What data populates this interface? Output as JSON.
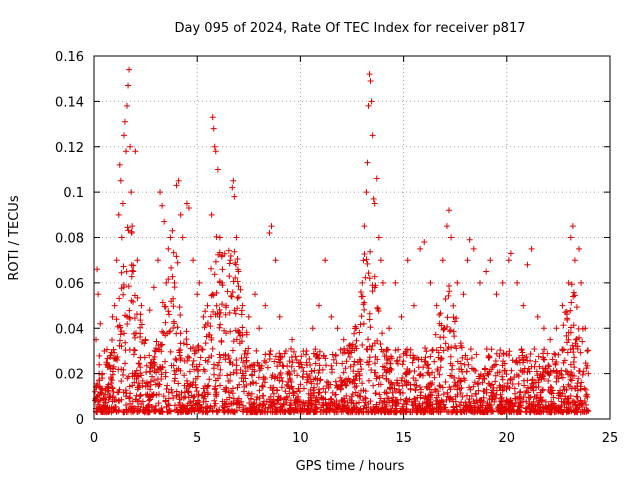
{
  "chart_data": {
    "type": "scatter",
    "title": "Day 095 of 2024, Rate Of TEC Index for receiver p817",
    "xlabel": "GPS time / hours",
    "ylabel": "ROTI / TECUs",
    "xlim": [
      0,
      25
    ],
    "ylim": [
      0,
      0.16
    ],
    "x_ticks": [
      0,
      5,
      10,
      15,
      20,
      25
    ],
    "y_ticks": [
      0,
      0.02,
      0.04,
      0.06,
      0.08,
      0.1,
      0.12,
      0.14,
      0.16
    ],
    "grid": true,
    "marker": "+",
    "color": "#e00000",
    "series": [
      {
        "points": [
          [
            0.05,
            0.012
          ],
          [
            0.1,
            0.035
          ],
          [
            0.15,
            0.066
          ],
          [
            0.2,
            0.055
          ],
          [
            0.25,
            0.02
          ],
          [
            0.3,
            0.042
          ],
          [
            0.4,
            0.018
          ],
          [
            0.5,
            0.03
          ],
          [
            0.6,
            0.025
          ],
          [
            0.7,
            0.014
          ],
          [
            0.8,
            0.028
          ],
          [
            0.9,
            0.045
          ],
          [
            1.0,
            0.05
          ],
          [
            1.1,
            0.07
          ],
          [
            1.2,
            0.09
          ],
          [
            1.25,
            0.112
          ],
          [
            1.3,
            0.105
          ],
          [
            1.35,
            0.08
          ],
          [
            1.4,
            0.095
          ],
          [
            1.45,
            0.125
          ],
          [
            1.5,
            0.131
          ],
          [
            1.55,
            0.118
          ],
          [
            1.6,
            0.138
          ],
          [
            1.65,
            0.147
          ],
          [
            1.7,
            0.154
          ],
          [
            1.75,
            0.12
          ],
          [
            1.8,
            0.1
          ],
          [
            1.85,
            0.085
          ],
          [
            1.9,
            0.065
          ],
          [
            2.0,
            0.118
          ],
          [
            2.1,
            0.07
          ],
          [
            2.3,
            0.05
          ],
          [
            2.5,
            0.035
          ],
          [
            2.7,
            0.048
          ],
          [
            2.9,
            0.058
          ],
          [
            3.1,
            0.07
          ],
          [
            3.2,
            0.1
          ],
          [
            3.3,
            0.094
          ],
          [
            3.4,
            0.087
          ],
          [
            3.5,
            0.06
          ],
          [
            3.6,
            0.075
          ],
          [
            3.7,
            0.08
          ],
          [
            3.8,
            0.083
          ],
          [
            3.9,
            0.06
          ],
          [
            4.0,
            0.103
          ],
          [
            4.1,
            0.105
          ],
          [
            4.2,
            0.09
          ],
          [
            4.3,
            0.08
          ],
          [
            4.5,
            0.095
          ],
          [
            4.6,
            0.093
          ],
          [
            4.8,
            0.07
          ],
          [
            5.0,
            0.055
          ],
          [
            5.1,
            0.06
          ],
          [
            5.3,
            0.045
          ],
          [
            5.5,
            0.05
          ],
          [
            5.7,
            0.09
          ],
          [
            5.75,
            0.133
          ],
          [
            5.8,
            0.128
          ],
          [
            5.85,
            0.12
          ],
          [
            5.9,
            0.118
          ],
          [
            6.0,
            0.11
          ],
          [
            6.1,
            0.08
          ],
          [
            6.2,
            0.06
          ],
          [
            6.4,
            0.05
          ],
          [
            6.6,
            0.07
          ],
          [
            6.7,
            0.102
          ],
          [
            6.75,
            0.105
          ],
          [
            6.8,
            0.098
          ],
          [
            6.9,
            0.08
          ],
          [
            7.0,
            0.065
          ],
          [
            7.2,
            0.05
          ],
          [
            7.5,
            0.045
          ],
          [
            7.8,
            0.055
          ],
          [
            8.0,
            0.04
          ],
          [
            8.3,
            0.05
          ],
          [
            8.5,
            0.082
          ],
          [
            8.6,
            0.085
          ],
          [
            8.8,
            0.07
          ],
          [
            9.0,
            0.045
          ],
          [
            9.3,
            0.03
          ],
          [
            9.6,
            0.035
          ],
          [
            10.0,
            0.025
          ],
          [
            10.3,
            0.03
          ],
          [
            10.6,
            0.04
          ],
          [
            10.9,
            0.05
          ],
          [
            11.2,
            0.07
          ],
          [
            11.5,
            0.045
          ],
          [
            11.8,
            0.04
          ],
          [
            12.1,
            0.035
          ],
          [
            12.4,
            0.03
          ],
          [
            12.7,
            0.04
          ],
          [
            13.0,
            0.06
          ],
          [
            13.1,
            0.085
          ],
          [
            13.2,
            0.1
          ],
          [
            13.25,
            0.113
          ],
          [
            13.3,
            0.138
          ],
          [
            13.35,
            0.152
          ],
          [
            13.4,
            0.149
          ],
          [
            13.45,
            0.14
          ],
          [
            13.5,
            0.125
          ],
          [
            13.55,
            0.097
          ],
          [
            13.6,
            0.095
          ],
          [
            13.7,
            0.106
          ],
          [
            13.8,
            0.08
          ],
          [
            13.9,
            0.07
          ],
          [
            14.0,
            0.06
          ],
          [
            14.3,
            0.04
          ],
          [
            14.6,
            0.06
          ],
          [
            14.9,
            0.045
          ],
          [
            15.2,
            0.07
          ],
          [
            15.5,
            0.05
          ],
          [
            15.8,
            0.075
          ],
          [
            16.0,
            0.078
          ],
          [
            16.3,
            0.06
          ],
          [
            16.6,
            0.05
          ],
          [
            16.9,
            0.07
          ],
          [
            17.1,
            0.085
          ],
          [
            17.2,
            0.092
          ],
          [
            17.3,
            0.08
          ],
          [
            17.6,
            0.06
          ],
          [
            17.9,
            0.055
          ],
          [
            18.1,
            0.07
          ],
          [
            18.2,
            0.079
          ],
          [
            18.4,
            0.075
          ],
          [
            18.7,
            0.06
          ],
          [
            19.0,
            0.065
          ],
          [
            19.2,
            0.07
          ],
          [
            19.5,
            0.055
          ],
          [
            19.8,
            0.06
          ],
          [
            20.1,
            0.07
          ],
          [
            20.2,
            0.073
          ],
          [
            20.5,
            0.06
          ],
          [
            20.8,
            0.05
          ],
          [
            21.0,
            0.068
          ],
          [
            21.2,
            0.075
          ],
          [
            21.5,
            0.045
          ],
          [
            21.8,
            0.04
          ],
          [
            22.1,
            0.035
          ],
          [
            22.4,
            0.04
          ],
          [
            22.7,
            0.05
          ],
          [
            23.0,
            0.06
          ],
          [
            23.1,
            0.08
          ],
          [
            23.2,
            0.085
          ],
          [
            23.3,
            0.07
          ],
          [
            23.5,
            0.075
          ],
          [
            23.6,
            0.06
          ],
          [
            23.8,
            0.04
          ],
          [
            23.9,
            0.03
          ],
          [
            23.95,
            0.02
          ]
        ]
      }
    ]
  }
}
